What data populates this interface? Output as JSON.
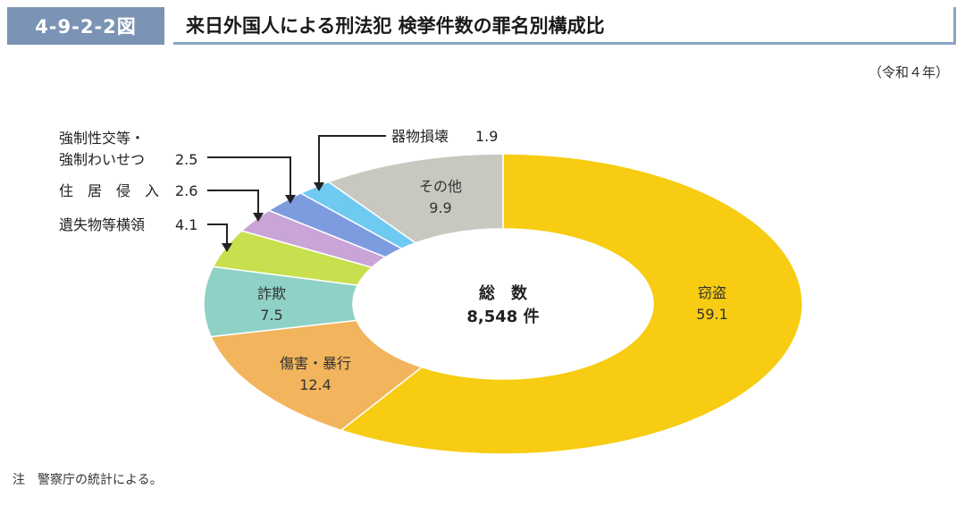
{
  "header": {
    "figure_number": "4-9-2-2図",
    "title": "来日外国人による刑法犯 検挙件数の罪名別構成比"
  },
  "year_label": "（令和４年）",
  "note": "注　警察庁の統計による。",
  "center": {
    "line1": "総　数",
    "line2": "8,548 件"
  },
  "chart_data": {
    "type": "pie",
    "title": "来日外国人による刑法犯 検挙件数の罪名別構成比",
    "total": 8548,
    "unit": "件",
    "slices": [
      {
        "name": "窃盗",
        "value": 59.1,
        "color": "#f7cc12",
        "label_pos": "inside"
      },
      {
        "name": "傷害・暴行",
        "value": 12.4,
        "color": "#f2b45c",
        "label_pos": "inside"
      },
      {
        "name": "詐欺",
        "value": 7.5,
        "color": "#8fd1c6",
        "label_pos": "inside"
      },
      {
        "name": "遺失物等横領",
        "value": 4.1,
        "color": "#c8df4e",
        "label_pos": "outside"
      },
      {
        "name": "住居侵入",
        "value": 2.6,
        "color": "#c9a4d6",
        "label_pos": "outside"
      },
      {
        "name": "強制性交等・強制わいせつ",
        "value": 2.5,
        "color": "#7d9ce0",
        "label_pos": "outside"
      },
      {
        "name": "器物損壊",
        "value": 1.9,
        "color": "#6fcaf2",
        "label_pos": "outside"
      },
      {
        "name": "その他",
        "value": 9.9,
        "color": "#c8c8c0",
        "label_pos": "inside"
      }
    ]
  },
  "labels": {
    "theft": {
      "name": "窃盗",
      "value": "59.1"
    },
    "assault": {
      "name": "傷害・暴行",
      "value": "12.4"
    },
    "fraud": {
      "name": "詐欺",
      "value": "7.5"
    },
    "other": {
      "name": "その他",
      "value": "9.9"
    },
    "lost_property": {
      "name": "遺失物等横領",
      "value": "4.1"
    },
    "trespass": {
      "name": "住　居　侵　入",
      "value": "2.6"
    },
    "sexual_line1": "強制性交等・",
    "sexual_line2": "強制わいせつ",
    "sexual_value": "2.5",
    "damage": {
      "name": "器物損壊",
      "value": "1.9"
    }
  }
}
